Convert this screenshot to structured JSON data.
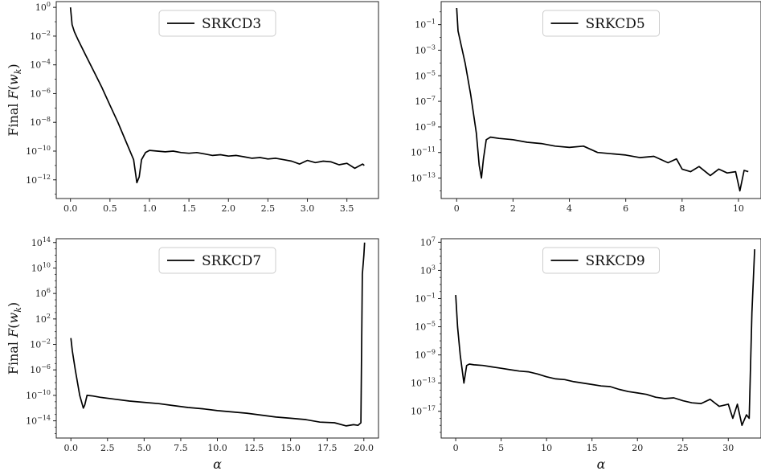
{
  "chart_data": [
    {
      "type": "line",
      "scale": {
        "x": "linear",
        "y": "log"
      },
      "ylabel": "Final F(w_k)",
      "xlabel": "",
      "xlim": [
        -0.18,
        3.9
      ],
      "ylim_log10": [
        -13.3,
        0.4
      ],
      "xticks": [
        0.0,
        0.5,
        1.0,
        1.5,
        2.0,
        2.5,
        3.0,
        3.5
      ],
      "xtick_labels": [
        "0.0",
        "0.5",
        "1.0",
        "1.5",
        "2.0",
        "2.5",
        "3.0",
        "3.5"
      ],
      "yticks_log10": [
        0,
        -2,
        -4,
        -6,
        -8,
        -10,
        -12
      ],
      "ytick_labels": [
        "10^0",
        "10^-2",
        "10^-4",
        "10^-6",
        "10^-8",
        "10^-10",
        "10^-12"
      ],
      "legend": {
        "position": "top-center",
        "entries": [
          "SRKCD3"
        ]
      },
      "series": [
        {
          "name": "SRKCD3",
          "x": [
            0.0,
            0.02,
            0.05,
            0.1,
            0.2,
            0.3,
            0.4,
            0.5,
            0.6,
            0.7,
            0.8,
            0.84,
            0.87,
            0.9,
            0.95,
            1.0,
            1.1,
            1.2,
            1.3,
            1.4,
            1.5,
            1.6,
            1.7,
            1.8,
            1.9,
            2.0,
            2.1,
            2.2,
            2.3,
            2.4,
            2.5,
            2.6,
            2.7,
            2.8,
            2.9,
            3.0,
            3.1,
            3.2,
            3.3,
            3.4,
            3.5,
            3.6,
            3.7,
            3.72
          ],
          "y_log10": [
            0.0,
            -1.2,
            -1.7,
            -2.3,
            -3.4,
            -4.5,
            -5.6,
            -6.8,
            -8.0,
            -9.3,
            -10.6,
            -12.2,
            -11.8,
            -10.6,
            -10.1,
            -9.95,
            -10.0,
            -10.05,
            -10.0,
            -10.1,
            -10.15,
            -10.1,
            -10.2,
            -10.3,
            -10.25,
            -10.35,
            -10.3,
            -10.4,
            -10.5,
            -10.45,
            -10.55,
            -10.5,
            -10.6,
            -10.7,
            -10.9,
            -10.65,
            -10.8,
            -10.7,
            -10.75,
            -10.95,
            -10.85,
            -11.2,
            -10.9,
            -11.0
          ]
        }
      ]
    },
    {
      "type": "line",
      "scale": {
        "x": "linear",
        "y": "log"
      },
      "ylabel": "",
      "xlabel": "",
      "xlim": [
        -0.55,
        10.8
      ],
      "ylim_log10": [
        -14.6,
        0.8
      ],
      "xticks": [
        0,
        2,
        4,
        6,
        8,
        10
      ],
      "xtick_labels": [
        "0",
        "2",
        "4",
        "6",
        "8",
        "10"
      ],
      "yticks_log10": [
        -1,
        -3,
        -5,
        -7,
        -9,
        -11,
        -13
      ],
      "ytick_labels": [
        "10^-1",
        "10^-3",
        "10^-5",
        "10^-7",
        "10^-9",
        "10^-11",
        "10^-13"
      ],
      "legend": {
        "position": "top-center",
        "entries": [
          "SRKCD5"
        ]
      },
      "series": [
        {
          "name": "SRKCD5",
          "x": [
            0.0,
            0.05,
            0.15,
            0.3,
            0.5,
            0.7,
            0.8,
            0.88,
            0.95,
            1.05,
            1.2,
            1.5,
            2.0,
            2.5,
            3.0,
            3.5,
            4.0,
            4.5,
            5.0,
            5.5,
            6.0,
            6.5,
            7.0,
            7.5,
            7.8,
            8.0,
            8.3,
            8.6,
            9.0,
            9.3,
            9.6,
            9.9,
            10.05,
            10.2,
            10.35
          ],
          "y_log10": [
            0.3,
            -1.5,
            -2.5,
            -4.0,
            -6.5,
            -9.5,
            -12.0,
            -13.0,
            -11.5,
            -10.0,
            -9.8,
            -9.9,
            -10.0,
            -10.2,
            -10.3,
            -10.5,
            -10.6,
            -10.5,
            -11.0,
            -11.1,
            -11.2,
            -11.4,
            -11.3,
            -11.8,
            -11.5,
            -12.3,
            -12.5,
            -12.1,
            -12.8,
            -12.3,
            -12.6,
            -12.5,
            -14.0,
            -12.4,
            -12.5
          ]
        }
      ]
    },
    {
      "type": "line",
      "scale": {
        "x": "linear",
        "y": "log"
      },
      "ylabel": "Final F(w_k)",
      "xlabel": "α",
      "xlim": [
        -1.0,
        21.0
      ],
      "ylim_log10": [
        -16.7,
        14.6
      ],
      "xticks": [
        0.0,
        2.5,
        5.0,
        7.5,
        10.0,
        12.5,
        15.0,
        17.5,
        20.0
      ],
      "xtick_labels": [
        "0.0",
        "2.5",
        "5.0",
        "7.5",
        "10.0",
        "12.5",
        "15.0",
        "17.5",
        "20.0"
      ],
      "yticks_log10": [
        14,
        10,
        6,
        2,
        -2,
        -6,
        -10,
        -14
      ],
      "ytick_labels": [
        "10^14",
        "10^10",
        "10^6",
        "10^2",
        "10^-2",
        "10^-6",
        "10^-10",
        "10^-14"
      ],
      "legend": {
        "position": "top-center",
        "entries": [
          "SRKCD7"
        ]
      },
      "series": [
        {
          "name": "SRKCD7",
          "x": [
            0.0,
            0.1,
            0.3,
            0.6,
            0.85,
            0.95,
            1.1,
            1.5,
            2.0,
            3.0,
            4.0,
            5.0,
            6.0,
            7.0,
            8.0,
            9.0,
            10.0,
            11.0,
            12.0,
            13.0,
            14.0,
            15.0,
            16.0,
            17.0,
            18.0,
            18.8,
            19.3,
            19.6,
            19.8,
            19.9,
            20.0,
            20.05
          ],
          "y_log10": [
            -1.0,
            -3.0,
            -6.0,
            -10.0,
            -12.0,
            -11.5,
            -10.0,
            -10.1,
            -10.3,
            -10.6,
            -10.9,
            -11.1,
            -11.3,
            -11.6,
            -11.9,
            -12.1,
            -12.4,
            -12.6,
            -12.8,
            -13.1,
            -13.4,
            -13.6,
            -13.8,
            -14.2,
            -14.3,
            -14.8,
            -14.6,
            -14.7,
            -14.3,
            9.0,
            12.0,
            14.0
          ]
        }
      ]
    },
    {
      "type": "line",
      "scale": {
        "x": "linear",
        "y": "log"
      },
      "ylabel": "",
      "xlabel": "α",
      "xlim": [
        -1.6,
        33.6
      ],
      "ylim_log10": [
        -20.8,
        7.5
      ],
      "xticks": [
        0,
        5,
        10,
        15,
        20,
        25,
        30
      ],
      "xtick_labels": [
        "0",
        "5",
        "10",
        "15",
        "20",
        "25",
        "30"
      ],
      "yticks_log10": [
        7,
        3,
        -1,
        -5,
        -9,
        -13,
        -17
      ],
      "ytick_labels": [
        "10^7",
        "10^3",
        "10^-1",
        "10^-5",
        "10^-9",
        "10^-13",
        "10^-17"
      ],
      "legend": {
        "position": "top-center",
        "entries": [
          "SRKCD9"
        ]
      },
      "series": [
        {
          "name": "SRKCD9",
          "x": [
            0.0,
            0.2,
            0.5,
            0.9,
            1.2,
            1.5,
            2.0,
            3.0,
            4.0,
            5.0,
            6.0,
            7.0,
            8.0,
            9.0,
            10.0,
            11.0,
            12.0,
            13.0,
            14.0,
            15.0,
            16.0,
            17.0,
            18.0,
            19.0,
            20.0,
            21.0,
            22.0,
            23.0,
            24.0,
            25.0,
            26.0,
            27.0,
            28.0,
            29.0,
            30.0,
            30.5,
            31.0,
            31.5,
            32.0,
            32.3,
            32.6,
            32.9
          ],
          "y_log10": [
            -0.5,
            -5.0,
            -9.0,
            -13.0,
            -10.5,
            -10.3,
            -10.4,
            -10.5,
            -10.7,
            -10.9,
            -11.1,
            -11.3,
            -11.4,
            -11.7,
            -12.1,
            -12.4,
            -12.5,
            -12.8,
            -13.0,
            -13.2,
            -13.4,
            -13.5,
            -13.9,
            -14.2,
            -14.4,
            -14.6,
            -15.0,
            -15.2,
            -15.1,
            -15.5,
            -15.8,
            -15.9,
            -15.3,
            -16.3,
            -16.0,
            -18.0,
            -16.0,
            -19.0,
            -17.5,
            -18.0,
            -3.0,
            6.0
          ]
        }
      ]
    }
  ]
}
